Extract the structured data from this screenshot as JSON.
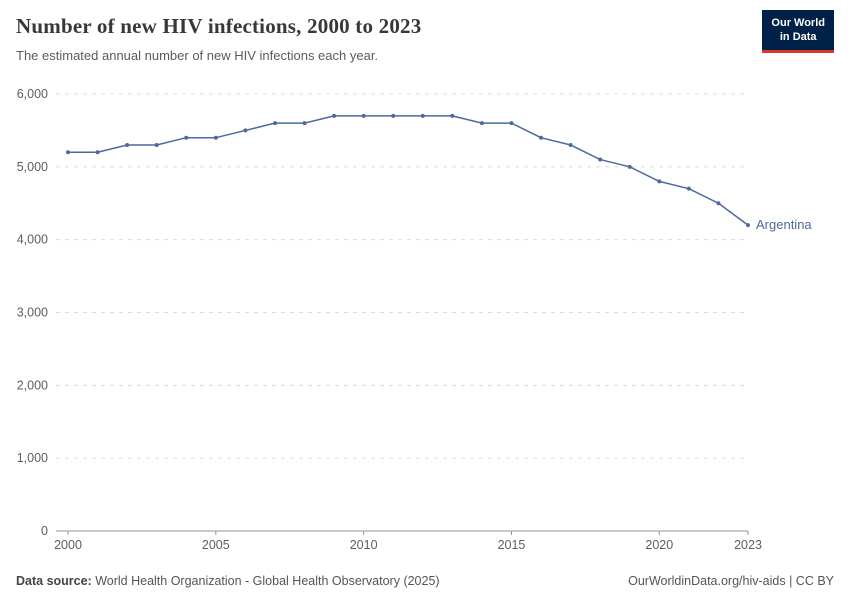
{
  "header": {
    "title": "Number of new HIV infections, 2000 to 2023",
    "subtitle": "The estimated annual number of new HIV infections each year."
  },
  "logo": {
    "line1": "Our World",
    "line2": "in Data"
  },
  "footer": {
    "source_label": "Data source:",
    "source_text": " World Health Organization - Global Health Observatory (2025)",
    "right_text": "OurWorldinData.org/hiv-aids | CC BY"
  },
  "chart_data": {
    "type": "line",
    "title": "Number of new HIV infections, 2000 to 2023",
    "xlabel": "",
    "ylabel": "",
    "xlim": [
      2000,
      2023
    ],
    "ylim": [
      0,
      6000
    ],
    "grid": "horizontal-dashed",
    "legend_position": "end-of-line-label",
    "xticks": [
      2000,
      2005,
      2010,
      2015,
      2020,
      2023
    ],
    "yticks": [
      0,
      1000,
      2000,
      3000,
      4000,
      5000,
      6000
    ],
    "ytick_labels": [
      "0",
      "1,000",
      "2,000",
      "3,000",
      "4,000",
      "5,000",
      "6,000"
    ],
    "series": [
      {
        "name": "Argentina",
        "color": "#4c6a9c",
        "x": [
          2000,
          2001,
          2002,
          2003,
          2004,
          2005,
          2006,
          2007,
          2008,
          2009,
          2010,
          2011,
          2012,
          2013,
          2014,
          2015,
          2016,
          2017,
          2018,
          2019,
          2020,
          2021,
          2022,
          2023
        ],
        "values": [
          5200,
          5200,
          5300,
          5300,
          5400,
          5400,
          5500,
          5600,
          5600,
          5700,
          5700,
          5700,
          5700,
          5700,
          5600,
          5600,
          5400,
          5300,
          5100,
          5000,
          4800,
          4700,
          4500,
          4200
        ]
      }
    ]
  }
}
